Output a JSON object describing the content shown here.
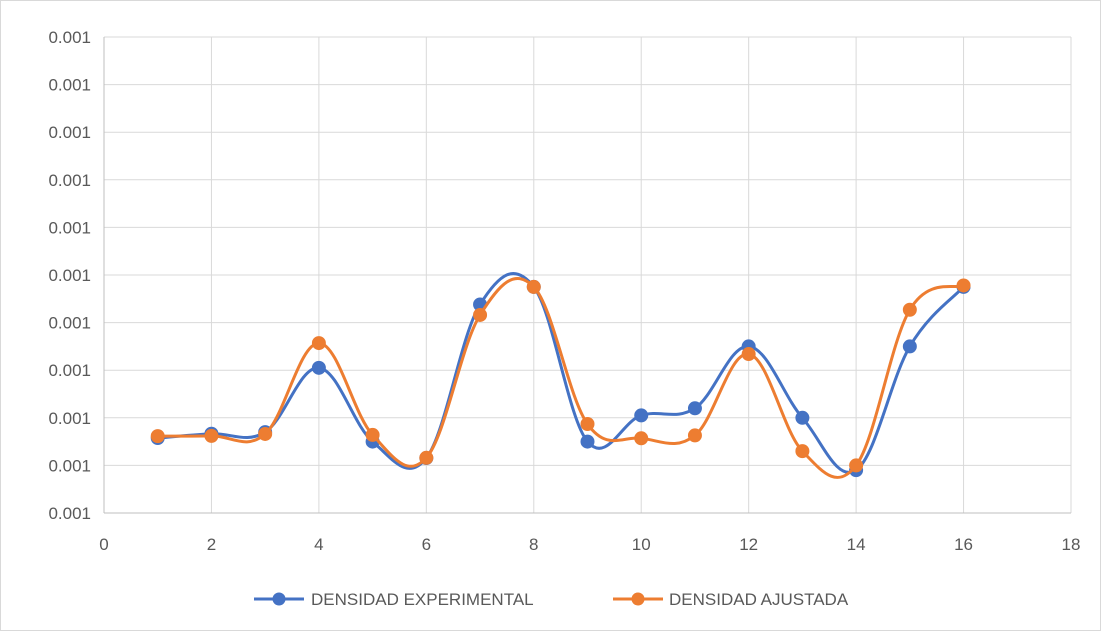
{
  "chart_data": {
    "type": "line",
    "smooth": true,
    "markers": "circle",
    "x_axis": {
      "min": 0,
      "max": 18,
      "major_unit": 2,
      "tick_labels": [
        "0",
        "2",
        "4",
        "6",
        "8",
        "10",
        "12",
        "14",
        "16",
        "18"
      ]
    },
    "y_axis": {
      "tick_labels": [
        "0.001",
        "0.001",
        "0.001",
        "0.001",
        "0.001",
        "0.001",
        "0.001",
        "0.001",
        "0.001",
        "0.001",
        "0.001"
      ],
      "gridlines": true
    },
    "legend": {
      "position": "bottom"
    },
    "x": [
      1,
      2,
      3,
      4,
      5,
      6,
      7,
      8,
      9,
      10,
      11,
      12,
      13,
      14,
      15,
      16
    ],
    "series": [
      {
        "name": "DENSIDAD EXPERIMENTAL",
        "color": "#4472C4",
        "values": [
          0.575,
          0.665,
          0.7,
          2.05,
          0.5,
          0.155,
          3.38,
          3.75,
          0.5,
          1.05,
          1.2,
          2.5,
          1.0,
          -0.1,
          2.5,
          3.75
        ]
      },
      {
        "name": "DENSIDAD AJUSTADA",
        "color": "#ED7D31",
        "values": [
          0.615,
          0.62,
          0.66,
          2.57,
          0.64,
          0.16,
          3.16,
          3.75,
          0.87,
          0.57,
          0.63,
          2.34,
          0.3,
          0.0,
          3.27,
          3.78
        ]
      }
    ]
  }
}
